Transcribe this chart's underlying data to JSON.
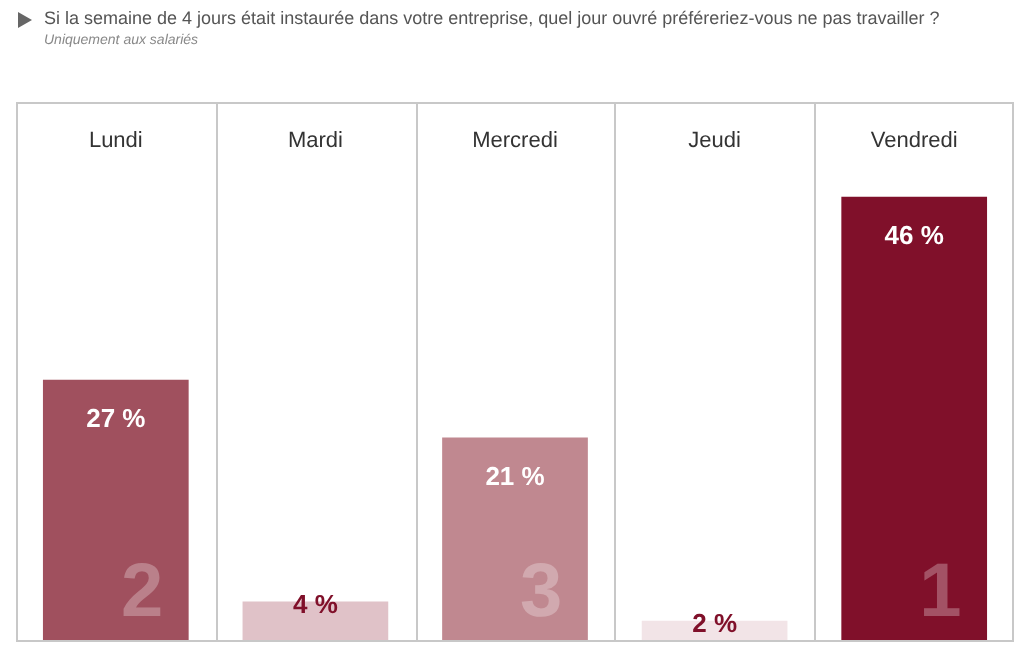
{
  "chart_data": {
    "type": "bar",
    "title": "Si la semaine de 4 jours était instaurée dans votre entreprise, quel jour ouvré préféreriez-vous ne pas travailler ?",
    "subtitle": "Uniquement aux salariés",
    "categories": [
      "Lundi",
      "Mardi",
      "Mercredi",
      "Jeudi",
      "Vendredi"
    ],
    "values": [
      27,
      4,
      21,
      2,
      46
    ],
    "colors": [
      "#a0505e",
      "#e0c2c8",
      "#c08890",
      "#f2e4e7",
      "#80102a"
    ],
    "value_labels": [
      "27 %",
      "4 %",
      "21 %",
      "2 %",
      "46 %"
    ],
    "annotations": [
      "1",
      "2",
      "3"
    ],
    "grid": "x",
    "legend": false
  }
}
